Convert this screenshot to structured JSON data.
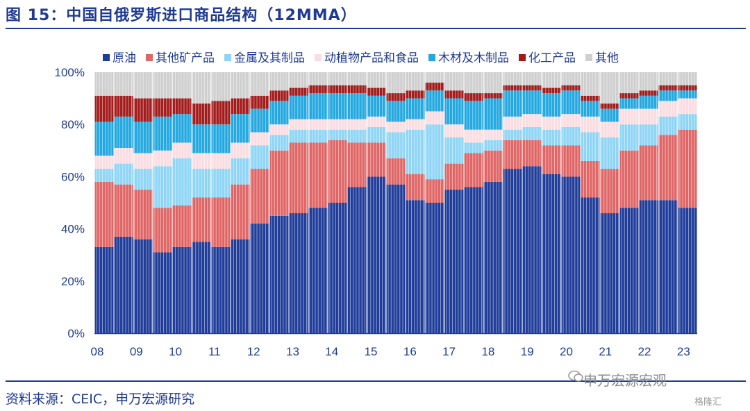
{
  "header": {
    "title": "图 15：中国自俄罗斯进口商品结构（12MMA）"
  },
  "footer": {
    "source": "资料来源：CEIC，申万宏源研究",
    "watermark": "申万宏源宏观",
    "corner_mark": "格隆汇"
  },
  "chart_data": {
    "type": "bar",
    "stacked": true,
    "x": [
      2008.0,
      2008.5,
      2009.0,
      2009.5,
      2010.0,
      2010.5,
      2011.0,
      2011.5,
      2012.0,
      2012.5,
      2013.0,
      2013.5,
      2014.0,
      2014.5,
      2015.0,
      2015.5,
      2016.0,
      2016.5,
      2017.0,
      2017.5,
      2018.0,
      2018.5,
      2019.0,
      2019.5,
      2020.0,
      2020.5,
      2021.0,
      2021.5,
      2022.0,
      2022.5,
      2023.0
    ],
    "x_tick_labels": [
      "08",
      "09",
      "10",
      "11",
      "12",
      "13",
      "14",
      "15",
      "16",
      "17",
      "18",
      "19",
      "20",
      "21",
      "22",
      "23"
    ],
    "ylim": [
      0,
      100
    ],
    "y_tick_labels": [
      "0%",
      "20%",
      "40%",
      "60%",
      "80%",
      "100%"
    ],
    "legend_position": "top",
    "series": [
      {
        "name": "原油",
        "color": "#1f3d99",
        "values": [
          33,
          37,
          36,
          31,
          33,
          35,
          33,
          36,
          42,
          45,
          46,
          48,
          50,
          56,
          60,
          57,
          51,
          50,
          55,
          56,
          58,
          63,
          64,
          61,
          60,
          52,
          46,
          48,
          51,
          51,
          48
        ]
      },
      {
        "name": "其他矿产品",
        "color": "#e06666",
        "values": [
          25,
          20,
          19,
          17,
          16,
          17,
          19,
          21,
          21,
          25,
          27,
          25,
          24,
          17,
          13,
          10,
          10,
          9,
          10,
          13,
          12,
          11,
          10,
          11,
          12,
          14,
          17,
          22,
          21,
          25,
          30
        ]
      },
      {
        "name": "金属及其制品",
        "color": "#8fd5f5",
        "values": [
          5,
          8,
          8,
          16,
          18,
          11,
          11,
          10,
          9,
          6,
          5,
          5,
          4,
          5,
          6,
          10,
          17,
          21,
          10,
          4,
          4,
          4,
          5,
          6,
          7,
          11,
          12,
          10,
          8,
          7,
          6
        ]
      },
      {
        "name": "动植物产品和食品",
        "color": "#f9dde2",
        "values": [
          5,
          6,
          6,
          6,
          6,
          6,
          6,
          6,
          5,
          4,
          4,
          4,
          4,
          4,
          4,
          4,
          4,
          5,
          5,
          5,
          4,
          5,
          5,
          5,
          5,
          6,
          6,
          6,
          6,
          6,
          6
        ]
      },
      {
        "name": "木材及木制品",
        "color": "#23a8df",
        "values": [
          13,
          12,
          12,
          13,
          11,
          11,
          11,
          11,
          9,
          9,
          9,
          10,
          10,
          10,
          8,
          8,
          8,
          8,
          10,
          11,
          12,
          10,
          9,
          9,
          9,
          6,
          5,
          4,
          5,
          4,
          3
        ]
      },
      {
        "name": "化工产品",
        "color": "#a31c1c",
        "values": [
          10,
          8,
          9,
          7,
          6,
          8,
          9,
          6,
          5,
          4,
          3,
          3,
          3,
          3,
          3,
          3,
          3,
          3,
          3,
          3,
          2,
          2,
          2,
          2,
          2,
          2,
          2,
          2,
          2,
          2,
          2
        ]
      },
      {
        "name": "其他",
        "color": "#cfcfcf",
        "values": [
          9,
          9,
          10,
          10,
          10,
          12,
          11,
          10,
          9,
          7,
          6,
          5,
          5,
          5,
          6,
          8,
          7,
          4,
          7,
          8,
          8,
          5,
          5,
          6,
          5,
          9,
          12,
          8,
          7,
          5,
          5
        ]
      }
    ]
  }
}
